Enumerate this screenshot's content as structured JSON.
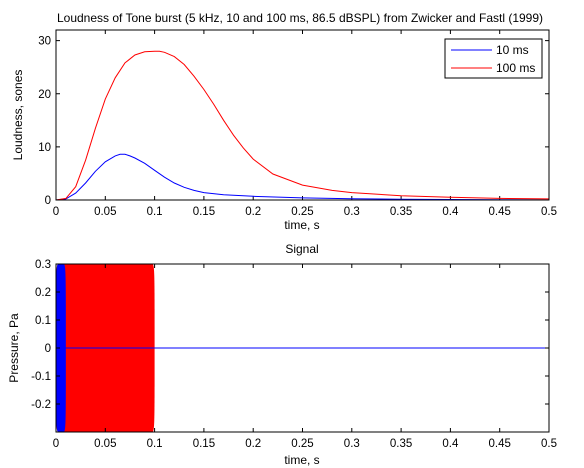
{
  "chart_data": [
    {
      "type": "line",
      "title": "Loudness of Tone burst (5 kHz, 10 and 100 ms, 86.5 dBSPL) from Zwicker and Fastl (1999)",
      "xlabel": "time, s",
      "ylabel": "Loudness, sones",
      "xlim": [
        0,
        0.5
      ],
      "ylim": [
        0,
        32
      ],
      "xticks": [
        "0",
        "0.05",
        "0.1",
        "0.15",
        "0.2",
        "0.25",
        "0.3",
        "0.35",
        "0.4",
        "0.45",
        "0.5"
      ],
      "yticks": [
        "0",
        "10",
        "20",
        "30"
      ],
      "legend": "top-right",
      "grid": false,
      "series": [
        {
          "name": "10 ms",
          "color": "#0000ff",
          "x": [
            0,
            0.01,
            0.02,
            0.03,
            0.04,
            0.05,
            0.06,
            0.065,
            0.07,
            0.075,
            0.08,
            0.09,
            0.1,
            0.11,
            0.12,
            0.13,
            0.14,
            0.15,
            0.17,
            0.2,
            0.25,
            0.3,
            0.35,
            0.4,
            0.45,
            0.5
          ],
          "y": [
            0,
            0.2,
            1.3,
            3.2,
            5.4,
            7.2,
            8.3,
            8.6,
            8.6,
            8.3,
            7.9,
            6.9,
            5.6,
            4.3,
            3.2,
            2.4,
            1.8,
            1.4,
            1.0,
            0.7,
            0.4,
            0.25,
            0.15,
            0.1,
            0.05,
            0.02
          ]
        },
        {
          "name": "100 ms",
          "color": "#ff0000",
          "x": [
            0,
            0.01,
            0.02,
            0.03,
            0.04,
            0.05,
            0.06,
            0.07,
            0.08,
            0.09,
            0.1,
            0.105,
            0.11,
            0.12,
            0.13,
            0.14,
            0.15,
            0.16,
            0.17,
            0.18,
            0.19,
            0.2,
            0.22,
            0.25,
            0.28,
            0.3,
            0.35,
            0.4,
            0.45,
            0.5
          ],
          "y": [
            0,
            0.3,
            2.5,
            7.5,
            13.5,
            19.0,
            23.0,
            25.8,
            27.3,
            27.9,
            28.0,
            28.0,
            27.8,
            27.0,
            25.5,
            23.3,
            20.8,
            18.0,
            15.0,
            12.2,
            9.8,
            7.7,
            4.9,
            2.8,
            1.8,
            1.4,
            0.8,
            0.5,
            0.3,
            0.2
          ]
        }
      ]
    },
    {
      "type": "line",
      "title": "Signal",
      "xlabel": "time, s",
      "ylabel": "Pressure, Pa",
      "xlim": [
        0,
        0.5
      ],
      "ylim": [
        -0.3,
        0.3
      ],
      "xticks": [
        "0",
        "0.05",
        "0.1",
        "0.15",
        "0.2",
        "0.25",
        "0.3",
        "0.35",
        "0.4",
        "0.45",
        "0.5"
      ],
      "yticks": [
        "-0.2",
        "-0.1",
        "0",
        "0.1",
        "0.2",
        "0.3"
      ],
      "grid": false,
      "series": [
        {
          "color": "#ff0000",
          "x": [
            0,
            0.1
          ],
          "amplitude": 0.3
        },
        {
          "color": "#0000ff",
          "x": [
            0,
            0.01
          ],
          "amplitude": 0.3
        }
      ]
    }
  ]
}
